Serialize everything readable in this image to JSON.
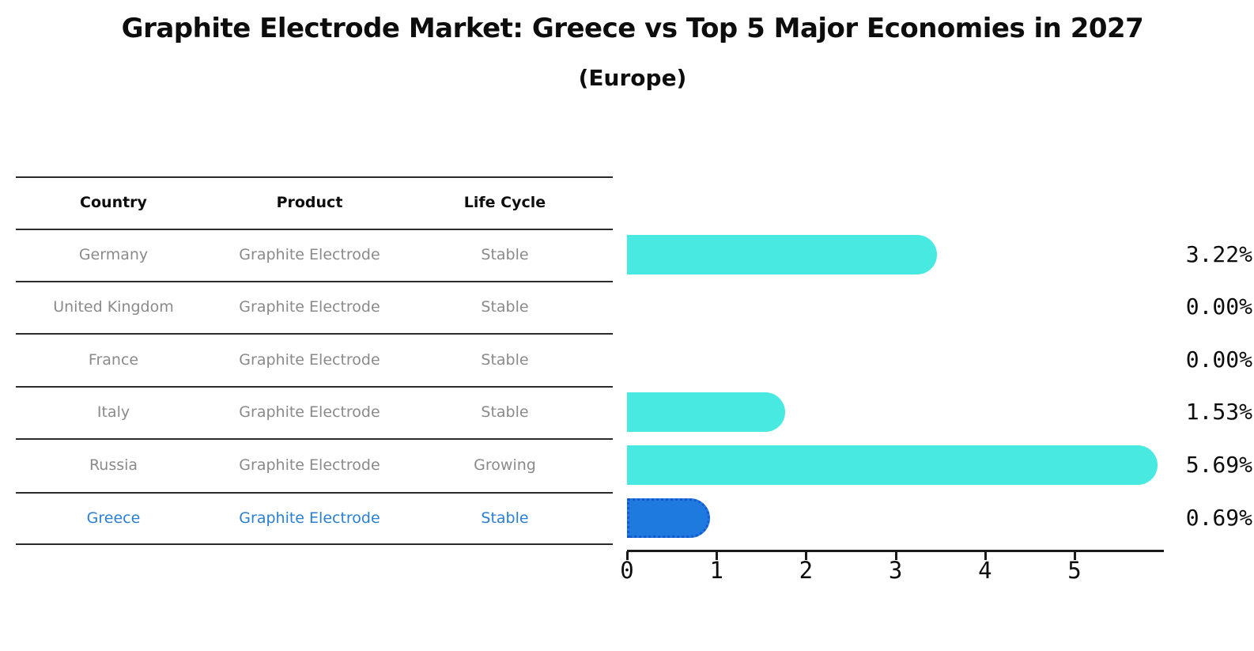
{
  "title": "Graphite Electrode Market: Greece vs Top 5 Major Economies in 2027",
  "subtitle": "(Europe)",
  "table": {
    "columns": [
      "Country",
      "Product",
      "Life Cycle"
    ],
    "rows": [
      {
        "country": "Germany",
        "product": "Graphite Electrode",
        "life_cycle": "Stable",
        "highlight": false
      },
      {
        "country": "United Kingdom",
        "product": "Graphite Electrode",
        "life_cycle": "Stable",
        "highlight": false
      },
      {
        "country": "France",
        "product": "Graphite Electrode",
        "life_cycle": "Stable",
        "highlight": false
      },
      {
        "country": "Italy",
        "product": "Graphite Electrode",
        "life_cycle": "Stable",
        "highlight": false
      },
      {
        "country": "Russia",
        "product": "Graphite Electrode",
        "life_cycle": "Growing",
        "highlight": false
      },
      {
        "country": "Greece",
        "product": "Graphite Electrode",
        "life_cycle": "Stable",
        "highlight": true
      }
    ]
  },
  "chart_data": {
    "type": "bar",
    "orientation": "horizontal",
    "title": "Graphite Electrode Market: Greece vs Top 5 Major Economies in 2027",
    "subtitle": "(Europe)",
    "categories": [
      "Germany",
      "United Kingdom",
      "France",
      "Italy",
      "Russia",
      "Greece"
    ],
    "values": [
      3.22,
      0.0,
      0.0,
      1.53,
      5.69,
      0.69
    ],
    "value_labels": [
      "3.22%",
      "0.00%",
      "0.00%",
      "1.53%",
      "5.69%",
      "0.69%"
    ],
    "unit": "%",
    "x_ticks": [
      0,
      1,
      2,
      3,
      4,
      5
    ],
    "xlim": [
      0,
      6
    ],
    "grid": false,
    "legend": "none",
    "highlight_index": 5,
    "colors": {
      "bar": "#48e9e1",
      "highlight_bar": "#1f7ae0",
      "highlight_border": "#1559ce",
      "table_text": "#8a8a8a",
      "highlight_text": "#2a7fd4",
      "axis": "#1a1a1a",
      "title_text": "#0d0d0d"
    }
  }
}
